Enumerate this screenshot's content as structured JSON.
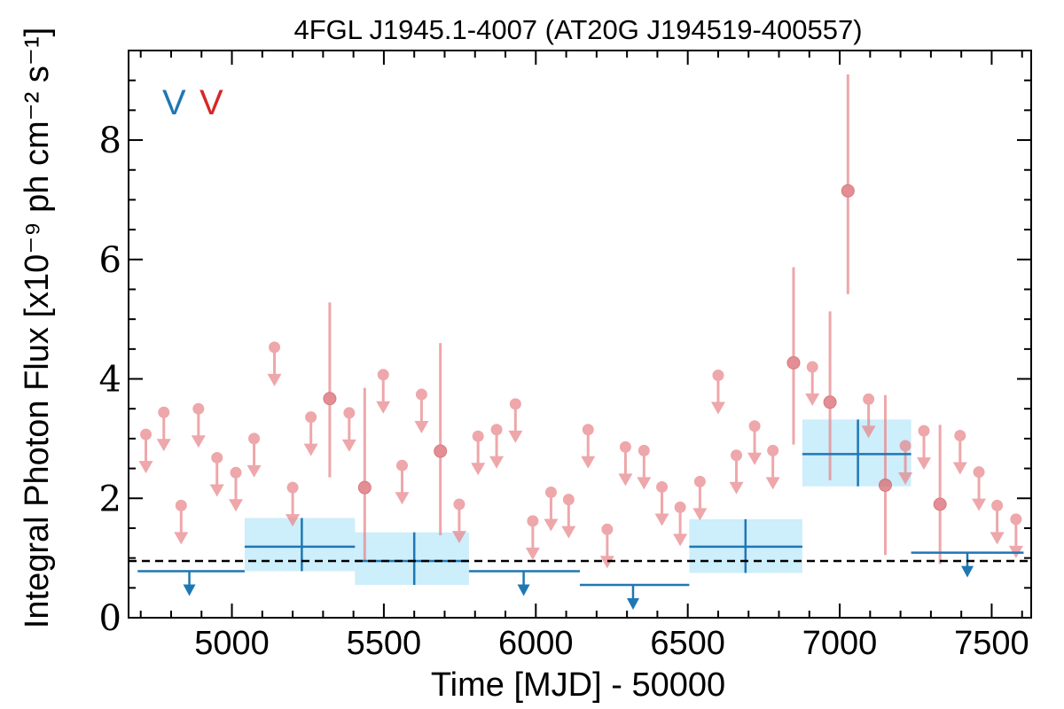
{
  "chart_data": {
    "type": "scatter",
    "title": "4FGL J1945.1-4007 (AT20G J194519-400557)",
    "xlabel": "Time [MJD] - 50000",
    "ylabel": "Integral Photon Flux [x10⁻⁹ ph cm⁻² s⁻¹]",
    "xlim": [
      4660,
      7630
    ],
    "ylim": [
      0,
      9.5
    ],
    "xticks": [
      5000,
      5500,
      6000,
      6500,
      7000,
      7500
    ],
    "yticks": [
      0,
      2,
      4,
      6,
      8
    ],
    "legend": {
      "placement": "top-left",
      "labels": [
        "V",
        "V"
      ],
      "colors": [
        "#1f77b4",
        "#d62728"
      ]
    },
    "reference_line": {
      "y": 0.95,
      "style": "dashed",
      "color": "#000000"
    },
    "series": [
      {
        "name": "",
        "color": "#e8868a",
        "detections": [
          {
            "x": 5322,
            "y": 3.67,
            "lo": 2.35,
            "hi": 5.28
          },
          {
            "x": 5437,
            "y": 2.18,
            "lo": 0.95,
            "hi": 3.85
          },
          {
            "x": 5686,
            "y": 2.79,
            "lo": 1.38,
            "hi": 4.6
          },
          {
            "x": 6848,
            "y": 4.27,
            "lo": 2.9,
            "hi": 5.87
          },
          {
            "x": 6968,
            "y": 3.61,
            "lo": 2.3,
            "hi": 5.13
          },
          {
            "x": 7027,
            "y": 7.15,
            "lo": 5.42,
            "hi": 9.1
          },
          {
            "x": 7150,
            "y": 2.22,
            "lo": 1.05,
            "hi": 3.73
          },
          {
            "x": 7330,
            "y": 1.9,
            "lo": 0.9,
            "hi": 3.23
          }
        ],
        "upper_limits": [
          {
            "x": 4717,
            "y": 3.07
          },
          {
            "x": 4776,
            "y": 3.44
          },
          {
            "x": 4833,
            "y": 1.88
          },
          {
            "x": 4890,
            "y": 3.5
          },
          {
            "x": 4951,
            "y": 2.68
          },
          {
            "x": 5013,
            "y": 2.43
          },
          {
            "x": 5073,
            "y": 3.0
          },
          {
            "x": 5140,
            "y": 4.53
          },
          {
            "x": 5200,
            "y": 2.18
          },
          {
            "x": 5260,
            "y": 3.36
          },
          {
            "x": 5386,
            "y": 3.43
          },
          {
            "x": 5498,
            "y": 4.07
          },
          {
            "x": 5560,
            "y": 2.55
          },
          {
            "x": 5624,
            "y": 3.74
          },
          {
            "x": 5748,
            "y": 1.9
          },
          {
            "x": 5810,
            "y": 3.04
          },
          {
            "x": 5871,
            "y": 3.15
          },
          {
            "x": 5933,
            "y": 3.58
          },
          {
            "x": 5990,
            "y": 1.62
          },
          {
            "x": 6050,
            "y": 2.1
          },
          {
            "x": 6108,
            "y": 1.98
          },
          {
            "x": 6172,
            "y": 3.15
          },
          {
            "x": 6235,
            "y": 1.48
          },
          {
            "x": 6295,
            "y": 2.86
          },
          {
            "x": 6356,
            "y": 2.8
          },
          {
            "x": 6415,
            "y": 2.19
          },
          {
            "x": 6475,
            "y": 1.85
          },
          {
            "x": 6540,
            "y": 2.28
          },
          {
            "x": 6600,
            "y": 4.06
          },
          {
            "x": 6660,
            "y": 2.72
          },
          {
            "x": 6720,
            "y": 3.21
          },
          {
            "x": 6780,
            "y": 2.8
          },
          {
            "x": 6910,
            "y": 4.2
          },
          {
            "x": 7095,
            "y": 3.66
          },
          {
            "x": 7216,
            "y": 2.88
          },
          {
            "x": 7277,
            "y": 3.13
          },
          {
            "x": 7396,
            "y": 3.05
          },
          {
            "x": 7458,
            "y": 2.44
          },
          {
            "x": 7518,
            "y": 1.88
          },
          {
            "x": 7580,
            "y": 1.65
          }
        ]
      },
      {
        "name": "",
        "color": "#1f77b4",
        "band_color": "#cdeefb",
        "detections": [
          {
            "x": 5230,
            "x0": 5042,
            "x1": 5405,
            "y": 1.19,
            "lo": 0.78,
            "hi": 1.67
          },
          {
            "x": 5600,
            "x0": 5405,
            "x1": 5780,
            "y": 0.95,
            "lo": 0.55,
            "hi": 1.43
          },
          {
            "x": 6690,
            "x0": 6505,
            "x1": 6877,
            "y": 1.19,
            "lo": 0.75,
            "hi": 1.65
          },
          {
            "x": 7060,
            "x0": 6877,
            "x1": 7235,
            "y": 2.74,
            "lo": 2.2,
            "hi": 3.32
          }
        ],
        "upper_limits": [
          {
            "x": 4860,
            "x0": 4690,
            "x1": 5042,
            "y": 0.78
          },
          {
            "x": 5960,
            "x0": 5780,
            "x1": 6145,
            "y": 0.78
          },
          {
            "x": 6320,
            "x0": 6145,
            "x1": 6505,
            "y": 0.55
          },
          {
            "x": 7420,
            "x0": 7235,
            "x1": 7605,
            "y": 1.09
          }
        ]
      }
    ]
  }
}
